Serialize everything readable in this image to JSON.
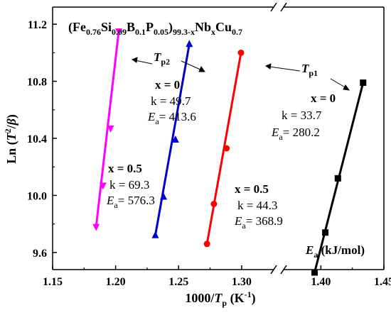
{
  "chart_data": {
    "type": "line",
    "title": {
      "open": "(Fe",
      "s1": "0.76",
      "t1": "Si",
      "s2": "0.09",
      "t2": "B",
      "s3": "0.1",
      "t3": "P",
      "s4": "0.05",
      "t4": ")",
      "s5": "99.3-x",
      "t5": "Nb",
      "s6": "x",
      "t6": "Cu",
      "s7": "0.7"
    },
    "xlabel": {
      "pre": "1000/",
      "var": "T",
      "sub": "p",
      "post": " (K",
      "sup": "-1",
      "close": ")"
    },
    "ylabel": {
      "pre": "Ln (",
      "var": "T",
      "sup": "2",
      "mid": "/",
      "var2": "β",
      "close": ")"
    },
    "xticks": [
      "1.15",
      "1.20",
      "1.25",
      "1.30",
      "1.40",
      "1.45"
    ],
    "yticks": [
      "9.6",
      "10.0",
      "10.4",
      "10.8",
      "11.2"
    ],
    "xlim": [
      1.15,
      1.45
    ],
    "ylim": [
      9.48,
      11.32
    ],
    "x_axis_break": [
      1.315,
      1.36
    ],
    "grid": false,
    "series": [
      {
        "color": "#ff00ff",
        "marker": "triangle-down",
        "points": [
          [
            1.2025,
            11.15
          ],
          [
            1.196,
            10.47
          ],
          [
            1.19,
            10.07
          ],
          [
            1.1845,
            9.78
          ]
        ],
        "line": [
          [
            1.2025,
            11.15
          ],
          [
            1.1845,
            9.78
          ]
        ]
      },
      {
        "color": "#0000cc",
        "marker": "triangle-up",
        "points": [
          [
            1.2585,
            11.06
          ],
          [
            1.2475,
            10.39
          ],
          [
            1.238,
            9.99
          ],
          [
            1.2315,
            9.72
          ]
        ],
        "line": [
          [
            1.2585,
            11.06
          ],
          [
            1.2315,
            9.72
          ]
        ]
      },
      {
        "color": "#ff0000",
        "marker": "circle",
        "points": [
          [
            1.2995,
            11.0
          ],
          [
            1.288,
            10.33
          ],
          [
            1.278,
            9.94
          ],
          [
            1.2725,
            9.66
          ]
        ],
        "line": [
          [
            1.2995,
            11.0
          ],
          [
            1.2725,
            9.66
          ]
        ]
      },
      {
        "color": "#000000",
        "marker": "square",
        "points": [
          [
            1.4335,
            10.79
          ],
          [
            1.4135,
            10.12
          ],
          [
            1.4035,
            9.74
          ],
          [
            1.395,
            9.46
          ]
        ],
        "line": [
          [
            1.4335,
            10.79
          ],
          [
            1.395,
            9.46
          ]
        ]
      }
    ],
    "annotations": {
      "tp2": {
        "var": "T",
        "sub": "p2"
      },
      "tp1": {
        "var": "T",
        "sub": "p1"
      },
      "x0": "x = 0",
      "x05": "x = 0.5",
      "k": "k = ",
      "ea_var": "E",
      "ea_sub": "a",
      "eq": "= ",
      "blue": {
        "k": "49.7",
        "ea": "413.6"
      },
      "black": {
        "k": "33.7",
        "ea": "280.2"
      },
      "magenta": {
        "k": "69.3",
        "ea": "576.3"
      },
      "red": {
        "k": "44.3",
        "ea": "368.9"
      },
      "unit": "(kJ/mol)"
    }
  }
}
